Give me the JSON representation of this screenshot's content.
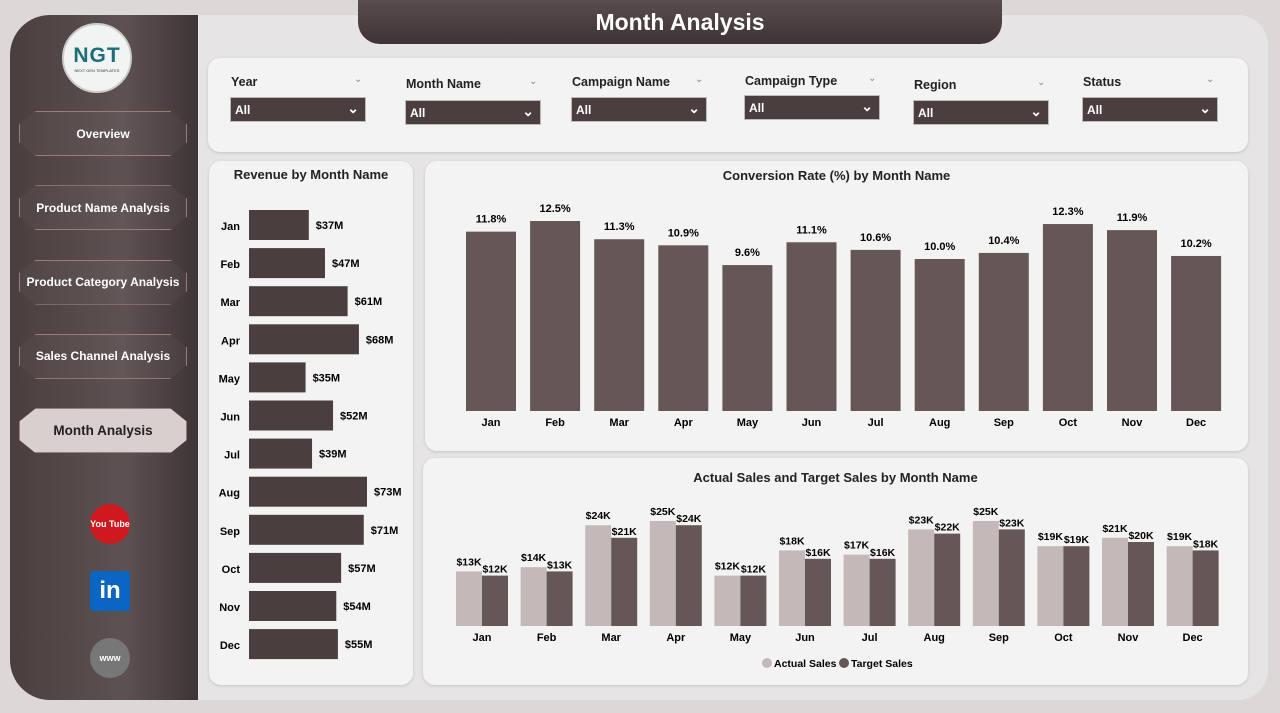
{
  "title": "Month Analysis",
  "logo": {
    "text": "NGT",
    "sub": "NEXT GEN TEMPLATES"
  },
  "nav": [
    {
      "label": "Overview"
    },
    {
      "label": "Product Name Analysis"
    },
    {
      "label": "Product Category Analysis"
    },
    {
      "label": "Sales Channel Analysis"
    },
    {
      "label": "Month Analysis",
      "active": true
    }
  ],
  "social": [
    {
      "icon": "youtube-icon",
      "label": "You Tube",
      "color": "#d0191e"
    },
    {
      "icon": "linkedin-icon",
      "label": "in",
      "color": "#0a66c2"
    },
    {
      "icon": "globe-icon",
      "label": "www",
      "color": "#777"
    }
  ],
  "filters": [
    {
      "label": "Year",
      "value": "All"
    },
    {
      "label": "Month Name",
      "value": "All"
    },
    {
      "label": "Campaign Name",
      "value": "All"
    },
    {
      "label": "Campaign Type",
      "value": "All"
    },
    {
      "label": "Region",
      "value": "All"
    },
    {
      "label": "Status",
      "value": "All"
    }
  ],
  "chart_data": [
    {
      "type": "bar",
      "orientation": "horizontal",
      "title": "Revenue by Month Name",
      "categories": [
        "Jan",
        "Feb",
        "Mar",
        "Apr",
        "May",
        "Jun",
        "Jul",
        "Aug",
        "Sep",
        "Oct",
        "Nov",
        "Dec"
      ],
      "values": [
        37,
        47,
        61,
        68,
        35,
        52,
        39,
        73,
        71,
        57,
        54,
        55
      ],
      "labels": [
        "$37M",
        "$47M",
        "$61M",
        "$68M",
        "$35M",
        "$52M",
        "$39M",
        "$73M",
        "$71M",
        "$57M",
        "$54M",
        "$55M"
      ],
      "unit": "$M",
      "color": "#4a3e3f"
    },
    {
      "type": "bar",
      "title": "Conversion Rate (%) by Month Name",
      "categories": [
        "Jan",
        "Feb",
        "Mar",
        "Apr",
        "May",
        "Jun",
        "Jul",
        "Aug",
        "Sep",
        "Oct",
        "Nov",
        "Dec"
      ],
      "values": [
        11.8,
        12.5,
        11.3,
        10.9,
        9.6,
        11.1,
        10.6,
        10.0,
        10.4,
        12.3,
        11.9,
        10.2
      ],
      "labels": [
        "11.8%",
        "12.5%",
        "11.3%",
        "10.9%",
        "9.6%",
        "11.1%",
        "10.6%",
        "10.0%",
        "10.4%",
        "12.3%",
        "11.9%",
        "10.2%"
      ],
      "color": "#665757"
    },
    {
      "type": "bar",
      "title": "Actual Sales and Target Sales by Month Name",
      "categories": [
        "Jan",
        "Feb",
        "Mar",
        "Apr",
        "May",
        "Jun",
        "Jul",
        "Aug",
        "Sep",
        "Oct",
        "Nov",
        "Dec"
      ],
      "legend": "bottom",
      "series": [
        {
          "name": "Actual Sales",
          "color": "#c4b8b8",
          "values": [
            13,
            14,
            24,
            25,
            12,
            18,
            17,
            23,
            25,
            19,
            21,
            19
          ],
          "labels": [
            "$13K",
            "$14K",
            "$24K",
            "$25K",
            "$12K",
            "$18K",
            "$17K",
            "$23K",
            "$25K",
            "$19K",
            "$21K",
            "$19K"
          ]
        },
        {
          "name": "Target Sales",
          "color": "#665757",
          "values": [
            12,
            13,
            21,
            24,
            12,
            16,
            16,
            22,
            23,
            19,
            20,
            18
          ],
          "labels": [
            "$12K",
            "$13K",
            "$21K",
            "$24K",
            "$12K",
            "$16K",
            "$16K",
            "$22K",
            "$23K",
            "$19K",
            "$20K",
            "$18K"
          ]
        }
      ]
    }
  ]
}
